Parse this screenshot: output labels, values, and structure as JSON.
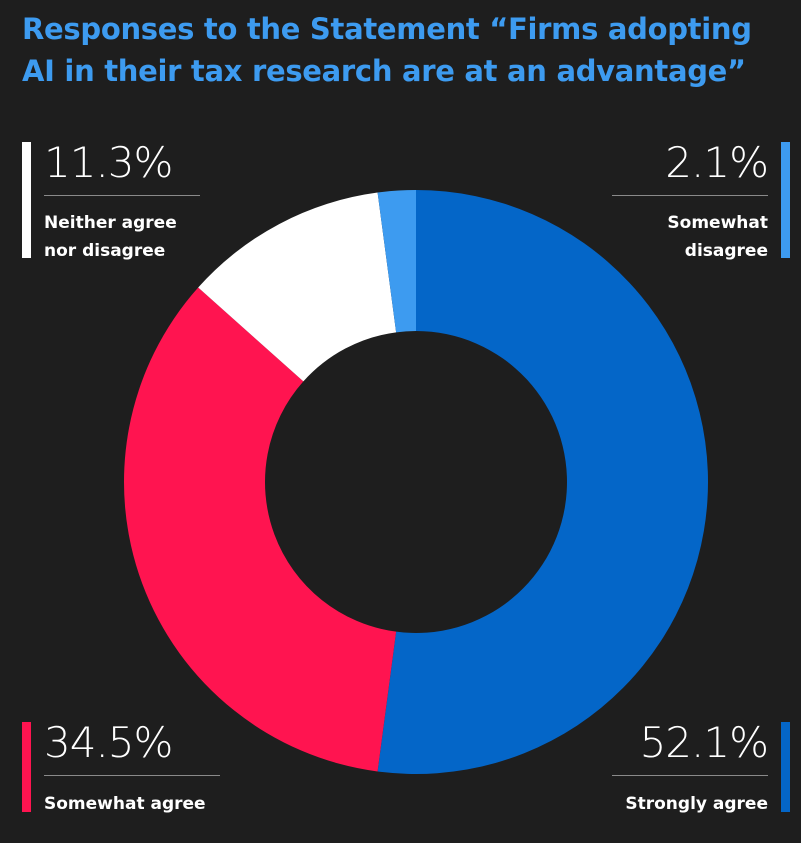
{
  "chart_data": {
    "type": "pie",
    "title_lines": [
      "Responses to the Statement “Firms adopting",
      "AI in their tax research are at an advantage”"
    ],
    "slices": [
      {
        "label": "Strongly agree",
        "value": 52.1,
        "display": "52.1%",
        "color": "#0466c8",
        "position": "bottom-right"
      },
      {
        "label": "Somewhat agree",
        "value": 34.5,
        "display": "34.5%",
        "color": "#ff1450",
        "position": "bottom-left"
      },
      {
        "label_lines": [
          "Neither agree",
          "nor disagree"
        ],
        "value": 11.3,
        "display": "11.3%",
        "color": "#ffffff",
        "position": "top-left"
      },
      {
        "label_lines": [
          "Somewhat",
          "disagree"
        ],
        "value": 2.1,
        "display": "2.1%",
        "color": "#3d9bf0",
        "position": "top-right"
      }
    ],
    "background_color": "#1e1e1e",
    "title_color": "#3d9bf0"
  }
}
